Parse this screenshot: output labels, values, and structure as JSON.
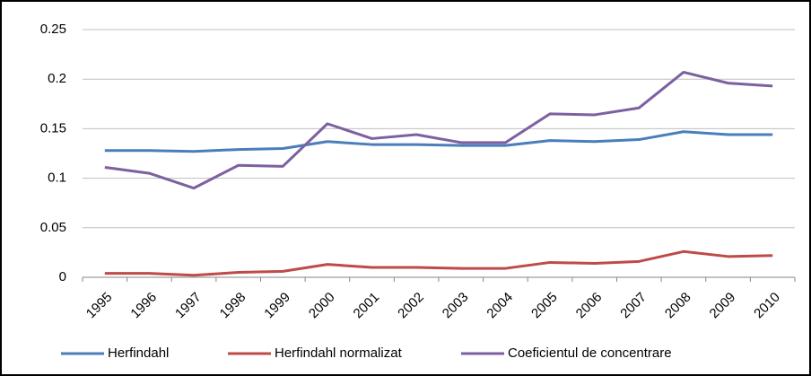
{
  "chart_data": {
    "type": "line",
    "categories": [
      "1995",
      "1996",
      "1997",
      "1998",
      "1999",
      "2000",
      "2001",
      "2002",
      "2003",
      "2004",
      "2005",
      "2006",
      "2007",
      "2008",
      "2009",
      "2010"
    ],
    "series": [
      {
        "name": "Herfindahl",
        "color": "#4a7ebb",
        "values": [
          0.128,
          0.128,
          0.127,
          0.129,
          0.13,
          0.137,
          0.134,
          0.134,
          0.133,
          0.133,
          0.138,
          0.137,
          0.139,
          0.147,
          0.144,
          0.144
        ]
      },
      {
        "name": "Herfindahl normalizat",
        "color": "#be4b48",
        "values": [
          0.004,
          0.004,
          0.002,
          0.005,
          0.006,
          0.013,
          0.01,
          0.01,
          0.009,
          0.009,
          0.015,
          0.014,
          0.016,
          0.026,
          0.021,
          0.022
        ]
      },
      {
        "name": "Coeficientul de concentrare",
        "color": "#7d60a0",
        "values": [
          0.111,
          0.105,
          0.09,
          0.113,
          0.112,
          0.155,
          0.14,
          0.144,
          0.136,
          0.136,
          0.165,
          0.164,
          0.171,
          0.207,
          0.196,
          0.193
        ]
      }
    ],
    "ylim": [
      0,
      0.25
    ],
    "yticks": [
      0,
      0.05,
      0.1,
      0.15,
      0.2,
      0.25
    ],
    "grid": true
  }
}
